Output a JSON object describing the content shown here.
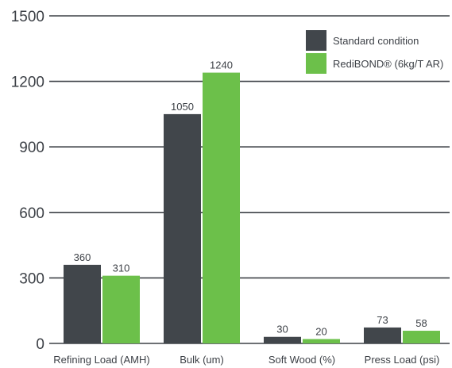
{
  "chart_data": {
    "type": "bar",
    "categories": [
      "Refining Load (AMH)",
      "Bulk (um)",
      "Soft Wood (%)",
      "Press Load (psi)"
    ],
    "series": [
      {
        "name": "Standard condition",
        "values": [
          360,
          1050,
          30,
          73
        ],
        "color": "#41464b"
      },
      {
        "name": "RediBOND® (6kg/T AR)",
        "values": [
          310,
          1240,
          20,
          58
        ],
        "color": "#6cc04a"
      }
    ],
    "data_labels": [
      [
        "360",
        "1050",
        "30",
        "73"
      ],
      [
        "310",
        "1240",
        "20",
        "58"
      ]
    ],
    "yticks": [
      0,
      300,
      600,
      900,
      1200,
      1500
    ],
    "ytick_labels": [
      "0",
      "300",
      "600",
      "900",
      "1200",
      "1500"
    ],
    "ylim": [
      0,
      1500
    ],
    "grid": true,
    "legend": "top-right",
    "colors": {
      "gridline": "#3d4147",
      "text": "#3d4147"
    }
  }
}
